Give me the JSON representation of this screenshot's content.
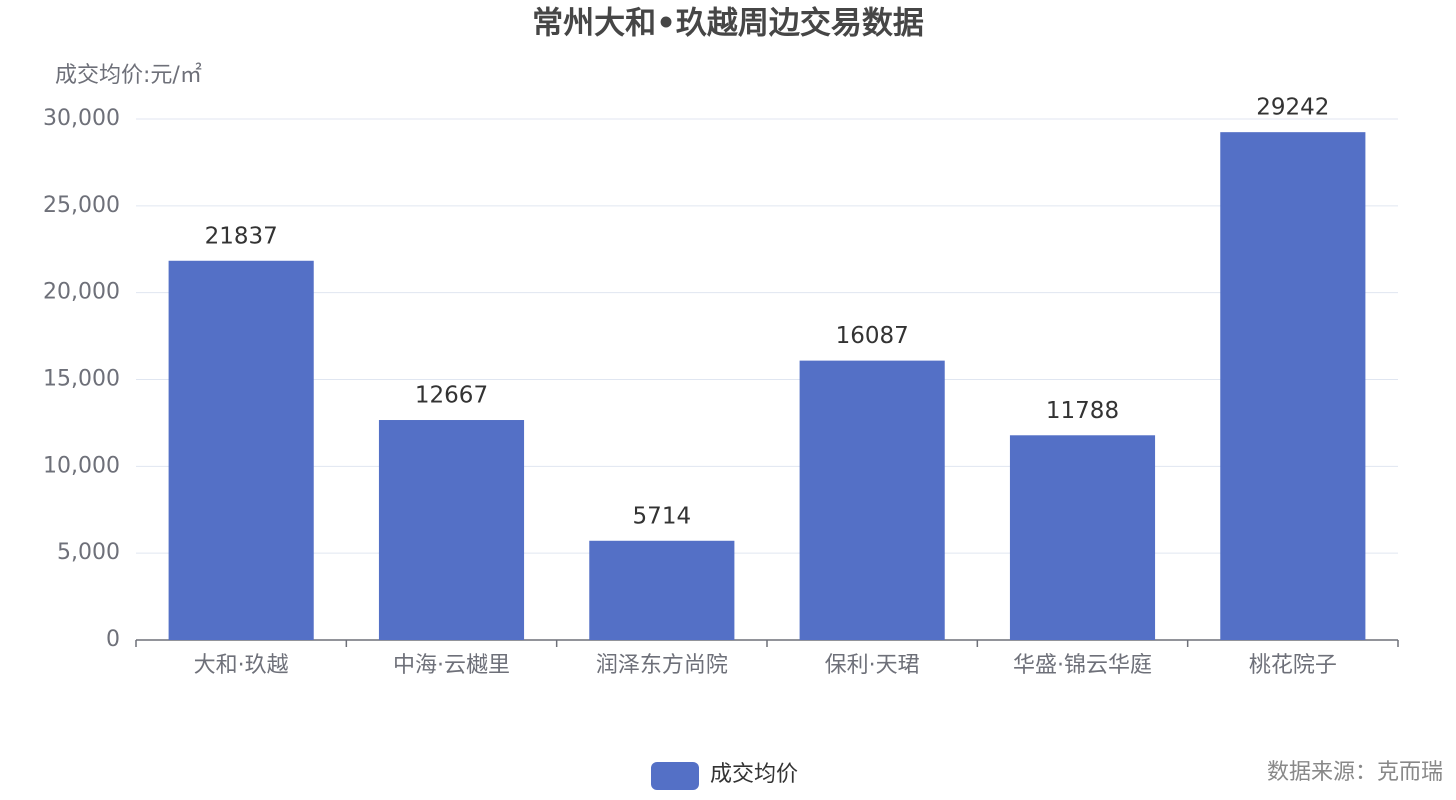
{
  "chart_data": {
    "type": "bar",
    "title": "常州大和•玖越周边交易数据",
    "y_axis_label": "成交均价:元/㎡",
    "source": "数据来源：克而瑞",
    "categories": [
      "大和·玖越",
      "中海·云樾里",
      "润泽东方尚院",
      "保利·天珺",
      "华盛·锦云华庭",
      "桃花院子"
    ],
    "series": [
      {
        "name": "成交均价",
        "color": "#5470c6",
        "values": [
          21837,
          12667,
          5714,
          16087,
          11788,
          29242
        ]
      }
    ],
    "ylim": [
      0,
      30000
    ],
    "yticks": [
      0,
      {
        "value": 5000,
        "label": "5,000"
      },
      {
        "value": 10000,
        "label": "10,000"
      },
      {
        "value": 15000,
        "label": "15,000"
      },
      {
        "value": 20000,
        "label": "20,000"
      },
      {
        "value": 25000,
        "label": "25,000"
      },
      {
        "value": 30000,
        "label": "30,000"
      }
    ],
    "grid": true,
    "legend": "bottom"
  }
}
